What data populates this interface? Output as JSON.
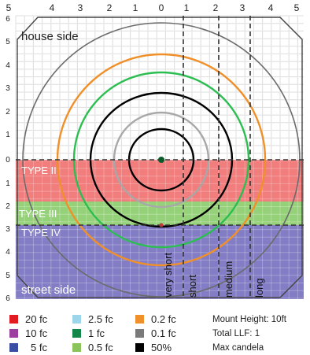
{
  "axis": {
    "top_ticks": [
      "5",
      "4",
      "3",
      "2",
      "1",
      "0",
      "1",
      "2",
      "3",
      "4",
      "5"
    ],
    "left_ticks": [
      "6",
      "5",
      "4",
      "3",
      "2",
      "1",
      "0",
      "1",
      "2",
      "3",
      "4",
      "5",
      "6"
    ]
  },
  "labels": {
    "house_side": "house side",
    "street_side": "street side"
  },
  "bands": [
    {
      "label": "TYPE II",
      "color": "#ef6f6f"
    },
    {
      "label": "TYPE III",
      "color": "#8fcf72"
    },
    {
      "label": "TYPE IV",
      "color": "#7b76c2"
    }
  ],
  "throw_labels": [
    "very short",
    "short",
    "medium",
    "long"
  ],
  "contours": [
    {
      "level": "0.1 fc",
      "color": "#6b6b6b"
    },
    {
      "level": "0.2 fc",
      "color": "#f0902a"
    },
    {
      "level": "0.5 fc",
      "color": "#2dbe52"
    },
    {
      "level": "50%",
      "color": "#000000"
    },
    {
      "level": "1 fc",
      "color": "#a8a8a8"
    },
    {
      "level": "50%",
      "color": "#000000"
    }
  ],
  "legend": {
    "items": [
      {
        "label": "20 fc",
        "color": "#e21b23"
      },
      {
        "label": "10 fc",
        "color": "#9c3ea0"
      },
      {
        "label": "5 fc",
        "color": "#3a4fa3"
      },
      {
        "label": "2.5 fc",
        "color": "#9dd6ea"
      },
      {
        "label": "1 fc",
        "color": "#13864a"
      },
      {
        "label": "0.5 fc",
        "color": "#8bc45a"
      },
      {
        "label": "0.2 fc",
        "color": "#f0902a"
      },
      {
        "label": "0.1 fc",
        "color": "#7a7a7a"
      },
      {
        "label": "50%",
        "color": "#000000"
      }
    ],
    "notes": [
      "Mount Height: 10ft",
      "Total LLF: 1",
      "Max candela"
    ]
  }
}
